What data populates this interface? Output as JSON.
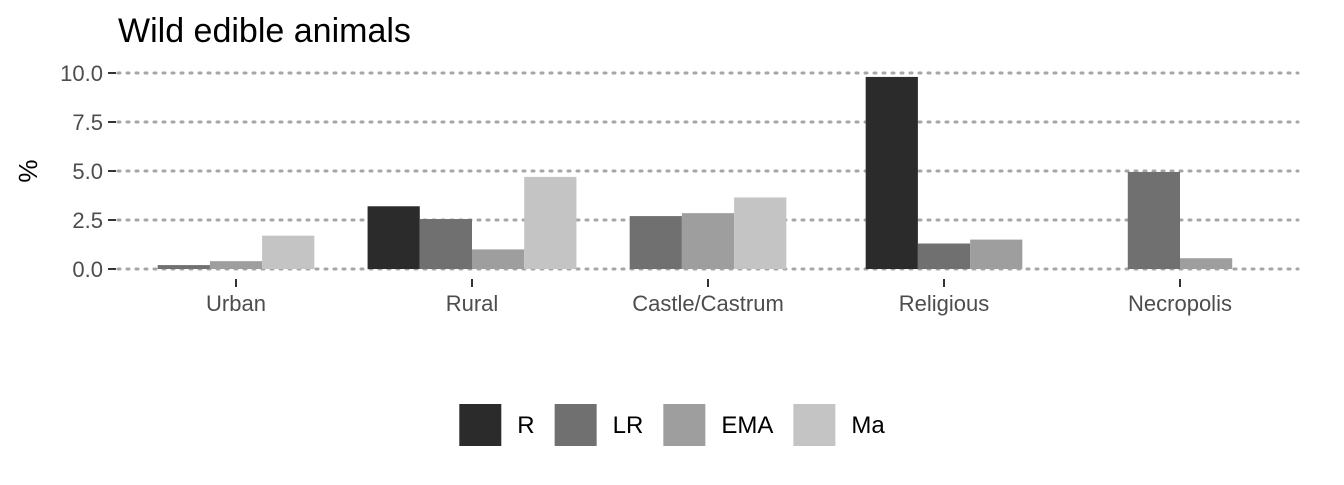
{
  "chart_data": {
    "type": "bar",
    "title": "Wild edible animals",
    "xlabel": "",
    "ylabel": "%",
    "ylim": [
      0,
      10
    ],
    "yticks": [
      "0.0",
      "2.5",
      "5.0",
      "7.5",
      "10.0"
    ],
    "ytick_values": [
      0,
      2.5,
      5,
      7.5,
      10
    ],
    "grid": "horizontal-dotted",
    "legend_position": "bottom",
    "categories": [
      "Urban",
      "Rural",
      "Castle/Castrum",
      "Religious",
      "Necropolis"
    ],
    "series": [
      {
        "name": "R",
        "color": "#2b2b2b",
        "values": [
          null,
          3.2,
          null,
          9.8,
          null
        ]
      },
      {
        "name": "LR",
        "color": "#707070",
        "values": [
          0.2,
          2.55,
          2.7,
          1.3,
          4.95
        ]
      },
      {
        "name": "EMA",
        "color": "#9e9e9e",
        "values": [
          0.4,
          1.0,
          2.85,
          1.5,
          0.55
        ]
      },
      {
        "name": "Ma",
        "color": "#c4c4c4",
        "values": [
          1.7,
          4.7,
          3.65,
          null,
          null
        ]
      }
    ]
  }
}
